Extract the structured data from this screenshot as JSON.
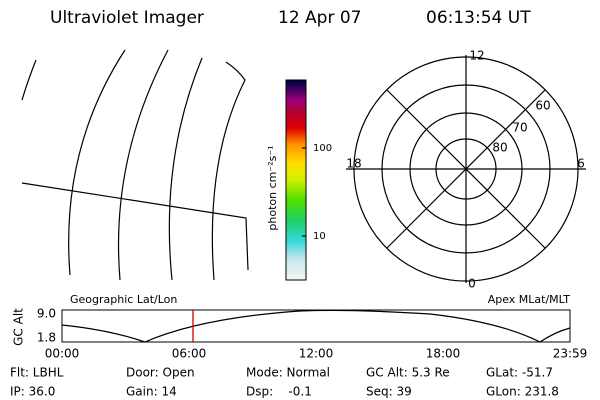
{
  "header": {
    "title": "Ultraviolet Imager",
    "date": "12 Apr 07",
    "time": "06:13:54 UT"
  },
  "colorbar": {
    "label": "photon cm⁻²s⁻¹",
    "ticks": [
      "100",
      "10"
    ]
  },
  "polar": {
    "mlt_labels": [
      "12",
      "18",
      "6",
      "0"
    ],
    "lat_labels": [
      "60",
      "70",
      "80"
    ]
  },
  "orbit": {
    "left_title": "Geographic Lat/Lon",
    "right_title": "Apex MLat/MLT",
    "y_label": "GC Alt",
    "y_ticks": [
      "9.0",
      "1.8"
    ],
    "x_ticks": [
      "00:00",
      "06:00",
      "12:00",
      "18:00",
      "23:59"
    ]
  },
  "info": {
    "rows": [
      [
        "Flt: LBHL",
        "Door: Open",
        "Mode: Normal",
        "GC Alt: 5.3 Re",
        "GLat: -51.7"
      ],
      [
        "IP: 36.0",
        "Gain: 14",
        "Dsp:    -0.1",
        "Seq: 39",
        "GLon: 231.8"
      ]
    ]
  }
}
